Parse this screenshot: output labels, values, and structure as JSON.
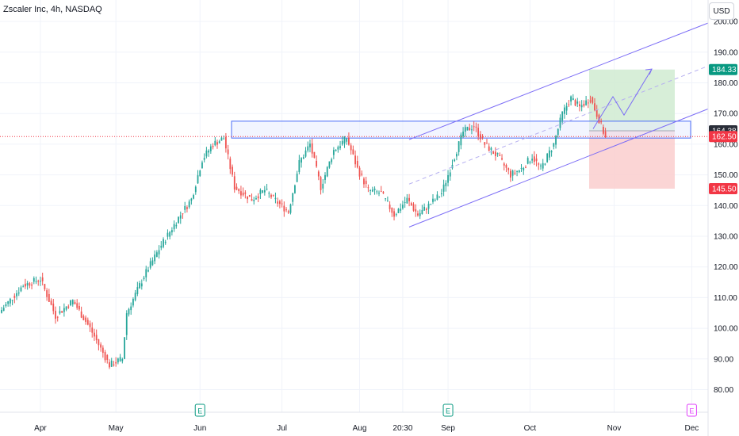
{
  "header": {
    "title": "Zscaler Inc, 4h, NASDAQ",
    "currency": "USD"
  },
  "colors": {
    "up": "#26a69a",
    "down": "#ef5350",
    "channel": "#7b6cf6",
    "zone_border": "#4a6cf7",
    "zone_fill": "#e8edff",
    "target_fill": "#d3ecd4",
    "stop_fill": "#fbd0d0",
    "target_tag": "#089981",
    "stop_tag": "#f23645",
    "price_tag": "#f23645",
    "level_tag": "#131722"
  },
  "price_tags": [
    {
      "label": "184.33",
      "value": 184.33,
      "color": "#089981"
    },
    {
      "label": "164.38",
      "value": 164.38,
      "color": "#2a2e39"
    },
    {
      "label": "162.50",
      "value": 162.5,
      "color": "#f23645"
    },
    {
      "label": "145.50",
      "value": 145.5,
      "color": "#f23645"
    }
  ],
  "chart_data": {
    "type": "candlestick",
    "title": "Zscaler Inc, 4h, NASDAQ",
    "currency": "USD",
    "ylim": [
      76,
      204
    ],
    "y_ticks": [
      80,
      90,
      100,
      110,
      120,
      130,
      140,
      150,
      160,
      170,
      180,
      190,
      200
    ],
    "y_tick_labels": [
      "80.00",
      "90.00",
      "100.00",
      "110.00",
      "120.00",
      "130.00",
      "140.00",
      "150.00",
      "160.00",
      "170.00",
      "180.00",
      "190.00",
      "200.00"
    ],
    "x_labels": [
      "Apr",
      "May",
      "Jun",
      "Jul",
      "Aug",
      "20:30",
      "Sep",
      "Oct",
      "Nov",
      "Dec"
    ],
    "events": [
      {
        "label": "E",
        "at": "Jun",
        "color": "#089981"
      },
      {
        "label": "E",
        "at": "Sep",
        "color": "#089981"
      },
      {
        "label": "E",
        "at": "Dec",
        "color": "#e040fb"
      }
    ],
    "anchors": [
      {
        "c": 0,
        "p": 106
      },
      {
        "c": 10,
        "p": 114
      },
      {
        "c": 18,
        "p": 116
      },
      {
        "c": 25,
        "p": 104
      },
      {
        "c": 33,
        "p": 109
      },
      {
        "c": 41,
        "p": 100
      },
      {
        "c": 50,
        "p": 88
      },
      {
        "c": 56,
        "p": 90
      },
      {
        "c": 58,
        "p": 105
      },
      {
        "c": 66,
        "p": 117
      },
      {
        "c": 74,
        "p": 127
      },
      {
        "c": 82,
        "p": 136
      },
      {
        "c": 88,
        "p": 142
      },
      {
        "c": 93,
        "p": 155
      },
      {
        "c": 98,
        "p": 160
      },
      {
        "c": 103,
        "p": 162
      },
      {
        "c": 108,
        "p": 146
      },
      {
        "c": 116,
        "p": 142
      },
      {
        "c": 122,
        "p": 145
      },
      {
        "c": 128,
        "p": 141
      },
      {
        "c": 133,
        "p": 138
      },
      {
        "c": 138,
        "p": 154
      },
      {
        "c": 143,
        "p": 160
      },
      {
        "c": 148,
        "p": 146
      },
      {
        "c": 154,
        "p": 158
      },
      {
        "c": 160,
        "p": 162
      },
      {
        "c": 165,
        "p": 152
      },
      {
        "c": 170,
        "p": 145
      },
      {
        "c": 176,
        "p": 144
      },
      {
        "c": 182,
        "p": 137
      },
      {
        "c": 188,
        "p": 142
      },
      {
        "c": 193,
        "p": 137
      },
      {
        "c": 198,
        "p": 140
      },
      {
        "c": 204,
        "p": 144
      },
      {
        "c": 209,
        "p": 154
      },
      {
        "c": 214,
        "p": 164
      },
      {
        "c": 219,
        "p": 166
      },
      {
        "c": 224,
        "p": 160
      },
      {
        "c": 230,
        "p": 156
      },
      {
        "c": 236,
        "p": 150
      },
      {
        "c": 241,
        "p": 152
      },
      {
        "c": 246,
        "p": 156
      },
      {
        "c": 250,
        "p": 152
      },
      {
        "c": 256,
        "p": 160
      },
      {
        "c": 260,
        "p": 170
      },
      {
        "c": 264,
        "p": 175
      },
      {
        "c": 268,
        "p": 172
      },
      {
        "c": 273,
        "p": 175
      },
      {
        "c": 277,
        "p": 168
      },
      {
        "c": 280,
        "p": 162
      }
    ],
    "drawings": {
      "resistance_zone": {
        "top": 167.5,
        "bottom": 162.0
      },
      "current_price": 162.5,
      "entry": 164.38,
      "target": 184.33,
      "stop": 145.5
    }
  }
}
